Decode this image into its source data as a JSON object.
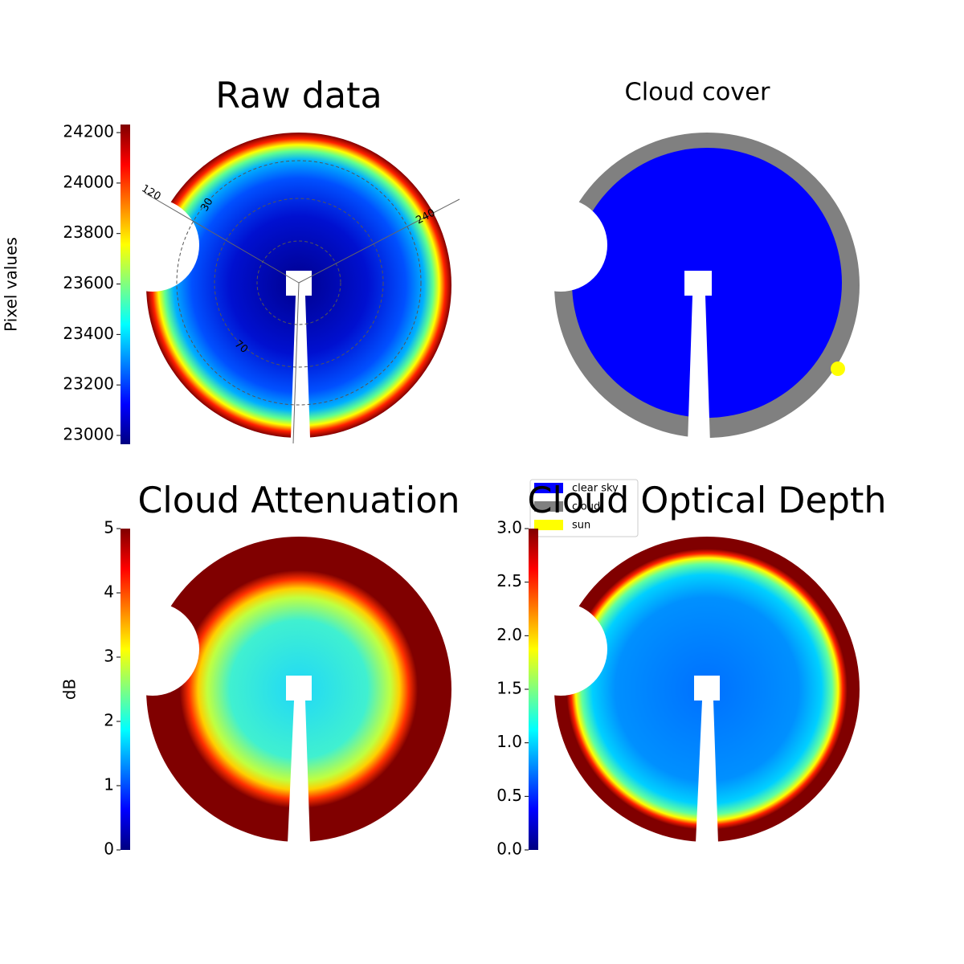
{
  "chart_data": [
    {
      "type": "image",
      "title": "Raw data",
      "colormap": "jet",
      "colorbar_label": "Pixel values",
      "ylim": [
        22965,
        24232
      ],
      "yticks": [
        23000,
        23200,
        23400,
        23600,
        23800,
        24000,
        24200
      ],
      "annotations": [
        "120",
        "240",
        "30",
        "70"
      ]
    },
    {
      "type": "categorical-image",
      "title": "Cloud cover",
      "series": [
        {
          "name": "clear sky",
          "color": "#0000ff"
        },
        {
          "name": "cloud",
          "color": "#808080"
        },
        {
          "name": "sun",
          "color": "#ffff00"
        }
      ]
    },
    {
      "type": "image",
      "title": "Cloud Attenuation",
      "colormap": "jet",
      "colorbar_label": "dB",
      "ylim": [
        0,
        5
      ],
      "yticks": [
        0,
        1,
        2,
        3,
        4,
        5
      ]
    },
    {
      "type": "image",
      "title": "Cloud Optical Depth",
      "colormap": "jet",
      "ylim": [
        0,
        3
      ],
      "yticks": [
        {
          "value": 0,
          "label": "0.0"
        },
        {
          "value": 0.5,
          "label": "0.5"
        },
        {
          "value": 1,
          "label": "1.0"
        },
        {
          "value": 1.5,
          "label": "1.5"
        },
        {
          "value": 2,
          "label": "2.0"
        },
        {
          "value": 2.5,
          "label": "2.5"
        },
        {
          "value": 3,
          "label": "3.0"
        }
      ]
    }
  ]
}
